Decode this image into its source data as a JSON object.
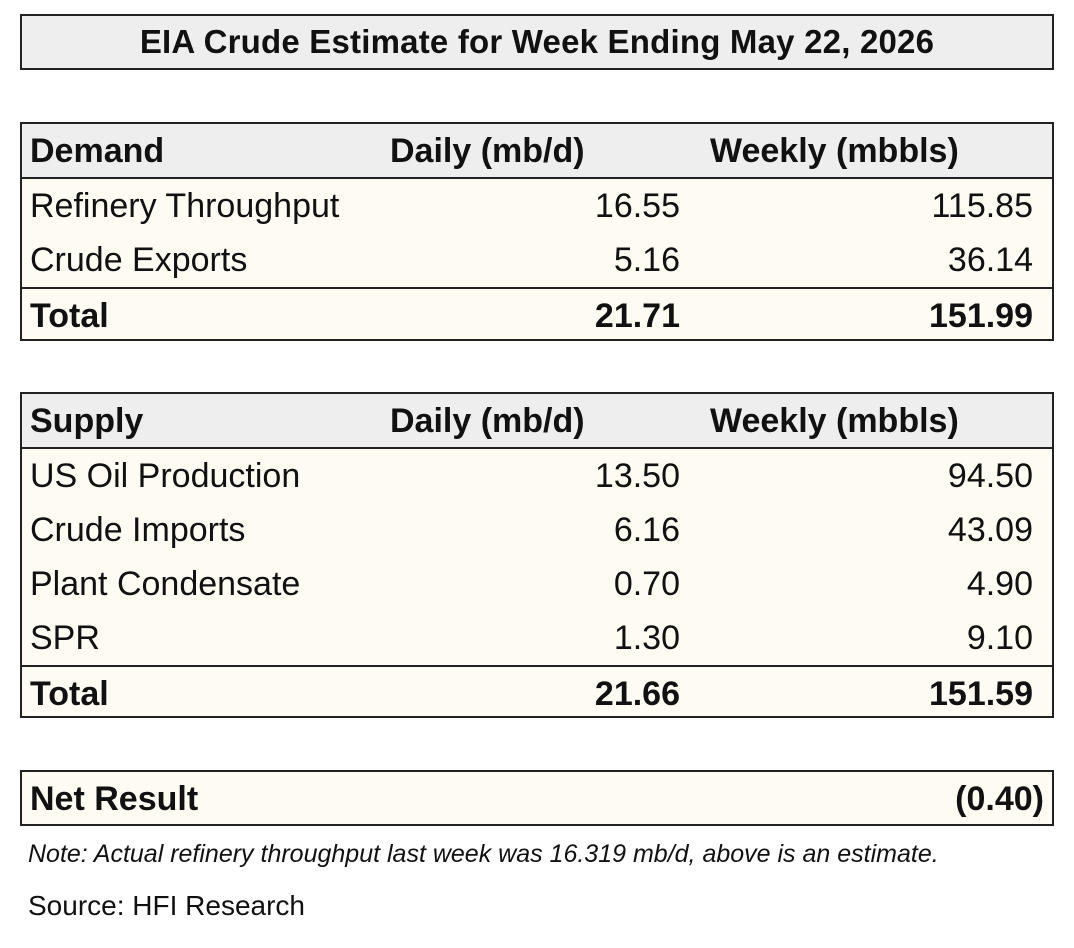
{
  "title": "EIA Crude Estimate for Week Ending May 22, 2026",
  "demand": {
    "headers": [
      "Demand",
      "Daily (mb/d)",
      "Weekly (mbbls)"
    ],
    "rows": [
      {
        "label": "Refinery Throughput",
        "daily": "16.55",
        "weekly": "115.85"
      },
      {
        "label": "Crude Exports",
        "daily": "5.16",
        "weekly": "36.14"
      }
    ],
    "total": {
      "label": "Total",
      "daily": "21.71",
      "weekly": "151.99"
    }
  },
  "supply": {
    "headers": [
      "Supply",
      "Daily (mb/d)",
      "Weekly (mbbls)"
    ],
    "rows": [
      {
        "label": "US Oil Production",
        "daily": "13.50",
        "weekly": "94.50"
      },
      {
        "label": "Crude Imports",
        "daily": "6.16",
        "weekly": "43.09"
      },
      {
        "label": "Plant Condensate",
        "daily": "0.70",
        "weekly": "4.90"
      },
      {
        "label": "SPR",
        "daily": "1.30",
        "weekly": "9.10"
      }
    ],
    "total": {
      "label": "Total",
      "daily": "21.66",
      "weekly": "151.59"
    }
  },
  "net_result": {
    "label": "Net Result",
    "value": "(0.40)"
  },
  "note": "Note: Actual refinery throughput last week was 16.319 mb/d, above is an estimate.",
  "source": "Source: HFI Research",
  "colors": {
    "header_bg": "#eeeeee",
    "table_bg": "#fdfbf2",
    "border": "#222222"
  }
}
